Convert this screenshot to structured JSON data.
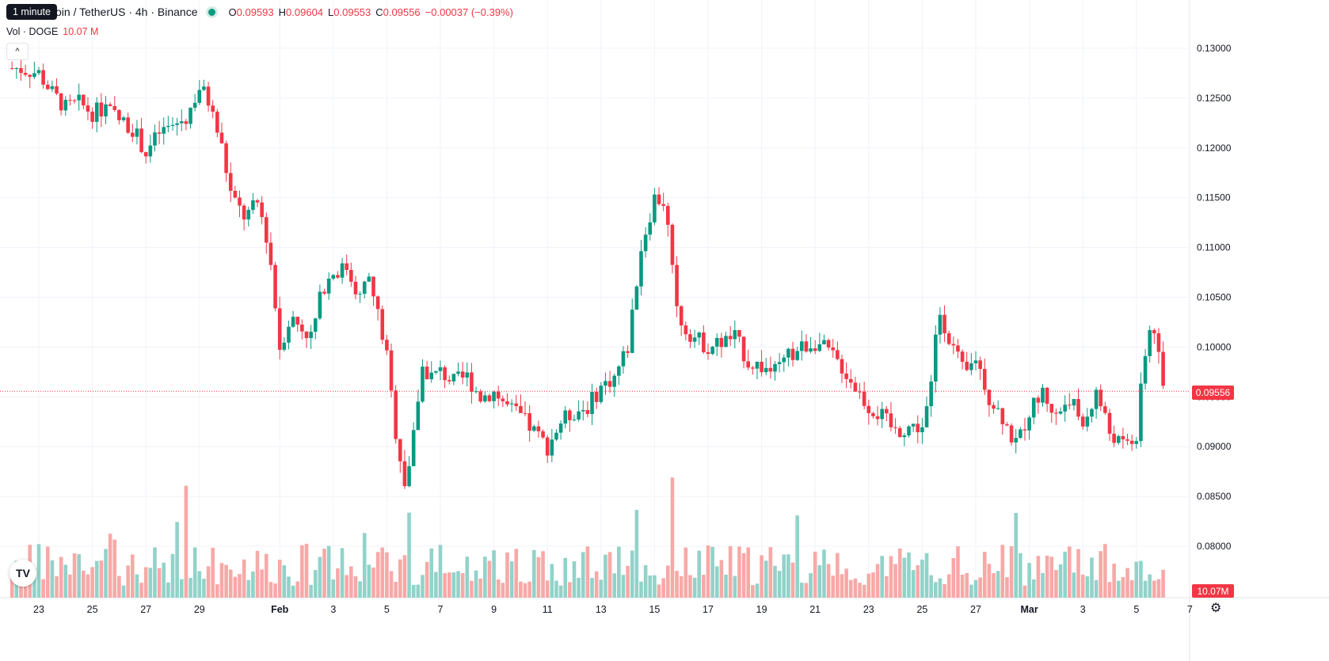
{
  "header": {
    "title": "oin / TetherUS · 4h · Binance",
    "o_label": "O",
    "o_value": "0.09593",
    "h_label": "H",
    "h_value": "0.09604",
    "l_label": "L",
    "l_value": "0.09553",
    "c_label": "C",
    "c_value": "0.09556",
    "change": "−0.00037 (−0.39%)",
    "tooltip": "1 minute"
  },
  "volume_legend": {
    "label": "Vol · DOGE",
    "value": "10.07 M"
  },
  "collapse_icon": "chevron-up-icon",
  "logo_text": "TV",
  "current_price_label": "0.09556",
  "current_volume_label": "10.07M",
  "colors": {
    "up": "#089981",
    "down": "#f23645",
    "vol_up": "#92d2c9",
    "vol_down": "#f7a9a7"
  },
  "chart_data": {
    "type": "candlestick",
    "ylim": [
      0.0775,
      0.1325
    ],
    "y_ticks": [
      "0.13000",
      "0.12500",
      "0.12000",
      "0.11500",
      "0.11000",
      "0.10500",
      "0.10000",
      "0.09500",
      "0.09000",
      "0.08500",
      "0.08000"
    ],
    "x_ticks": [
      "23",
      "25",
      "27",
      "29",
      "Feb",
      "3",
      "5",
      "7",
      "9",
      "11",
      "13",
      "15",
      "17",
      "19",
      "21",
      "23",
      "25",
      "27",
      "Mar",
      "3",
      "5",
      "7"
    ],
    "x_tick_days": [
      0,
      2,
      4,
      6,
      9,
      11,
      13,
      15,
      17,
      19,
      21,
      23,
      25,
      27,
      29,
      31,
      33,
      35,
      37,
      39,
      41,
      43
    ],
    "last_price": 0.09556,
    "close_path_days": [
      -0.8,
      0,
      0.5,
      1,
      1.5,
      2,
      2.5,
      3,
      3.5,
      4,
      4.5,
      5,
      5.5,
      6,
      6.3,
      6.8,
      7.2,
      7.7,
      8.2,
      8.6,
      9,
      9.4,
      9.8,
      10.2,
      10.6,
      11,
      11.5,
      12,
      12.3,
      12.7,
      13,
      13.3,
      13.7,
      14,
      14.3,
      14.7,
      15,
      15.5,
      16,
      16.5,
      17,
      17.5,
      18,
      18.5,
      19,
      19.5,
      20,
      20.5,
      21,
      21.5,
      22,
      22.5,
      23,
      23.4,
      23.8,
      24.1,
      24.5,
      25,
      25.5,
      26,
      26.5,
      27,
      27.5,
      28,
      28.5,
      29,
      29.5,
      30,
      30.5,
      31,
      31.5,
      32,
      32.5,
      33,
      33.3,
      33.6,
      34,
      34.3,
      34.6,
      35,
      35.5,
      36,
      36.5,
      37,
      37.5,
      38,
      38.5,
      39,
      39.5,
      40,
      40.5,
      41,
      41.3,
      41.6,
      42
    ],
    "close_path_values": [
      0.128,
      0.1275,
      0.1255,
      0.124,
      0.1245,
      0.1235,
      0.124,
      0.1228,
      0.122,
      0.1195,
      0.1215,
      0.1222,
      0.123,
      0.126,
      0.125,
      0.1205,
      0.115,
      0.113,
      0.1145,
      0.11,
      0.1,
      0.103,
      0.102,
      0.101,
      0.106,
      0.1075,
      0.108,
      0.105,
      0.107,
      0.103,
      0.099,
      0.092,
      0.086,
      0.091,
      0.098,
      0.097,
      0.0975,
      0.0965,
      0.097,
      0.095,
      0.0955,
      0.094,
      0.093,
      0.0915,
      0.09,
      0.0925,
      0.0935,
      0.094,
      0.096,
      0.097,
      0.1,
      0.11,
      0.115,
      0.1145,
      0.104,
      0.102,
      0.101,
      0.1,
      0.1005,
      0.101,
      0.0985,
      0.098,
      0.0975,
      0.099,
      0.1,
      0.1005,
      0.0995,
      0.098,
      0.096,
      0.094,
      0.093,
      0.0915,
      0.092,
      0.092,
      0.095,
      0.104,
      0.101,
      0.099,
      0.097,
      0.099,
      0.095,
      0.093,
      0.09,
      0.0935,
      0.0955,
      0.093,
      0.095,
      0.092,
      0.0955,
      0.0915,
      0.09,
      0.091,
      0.099,
      0.103,
      0.0956
    ],
    "volume_ylim": [
      0,
      5
    ]
  }
}
